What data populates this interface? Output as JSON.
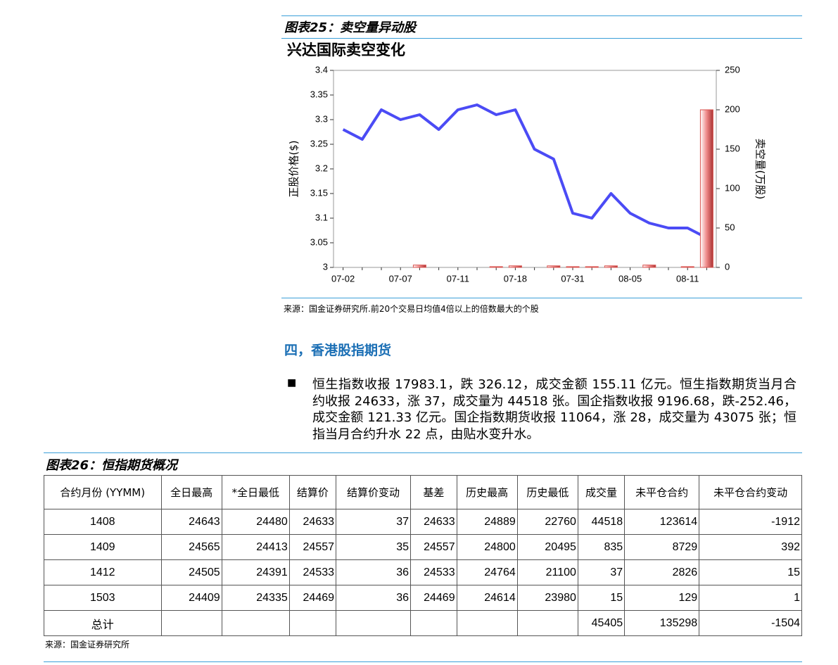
{
  "figure25": {
    "caption": "图表25：卖空量异动股",
    "source": "来源：国金证券研究所.前20个交易日均值4倍以上的倍数最大的个股"
  },
  "chart_data": {
    "type": "bar-line",
    "title": "兴达国际卖空变化",
    "categories": [
      "07-02",
      null,
      null,
      "07-07",
      null,
      null,
      "07-11",
      null,
      null,
      "07-18",
      null,
      null,
      "07-31",
      null,
      null,
      "08-05",
      null,
      null,
      "08-11",
      null
    ],
    "series": [
      {
        "type": "line",
        "color": "#4b4bf5",
        "values": [
          3.28,
          3.26,
          3.32,
          3.3,
          3.31,
          3.28,
          3.32,
          3.33,
          3.31,
          3.32,
          3.24,
          3.22,
          3.11,
          3.1,
          3.15,
          3.11,
          3.09,
          3.08,
          3.08,
          3.06
        ]
      },
      {
        "type": "bar",
        "axis": "y2",
        "color": "#d9534f",
        "values": [
          0,
          0,
          0,
          0,
          3,
          0,
          0,
          0,
          1,
          2,
          0,
          2,
          1,
          1,
          2,
          0,
          3,
          0,
          1,
          200
        ]
      }
    ],
    "ylabel": "正股价格($)",
    "y2label": "卖空量(万股)",
    "ylim": [
      3,
      3.4
    ],
    "yticks": [
      {
        "value": 3,
        "label": "3"
      },
      3.05,
      {
        "value": 3.1,
        "label": "3.1"
      },
      3.15,
      {
        "value": 3.2,
        "label": "3.2"
      },
      3.25,
      {
        "value": 3.3,
        "label": "3.3"
      },
      3.35,
      {
        "value": 3.4,
        "label": "3.4"
      }
    ],
    "y2lim": [
      0,
      250
    ],
    "y2ticks": [
      0,
      50,
      100,
      150,
      200,
      250
    ]
  },
  "section": {
    "heading": "四，香港股指期货",
    "paragraph": "恒生指数收报 17983.1，跌 326.12，成交金额 155.11 亿元。恒生指数期货当月合约收报 24633，涨 37，成交量为 44518 张。国企指数收报 9196.68，跌-252.46，成交金额 121.33 亿元。国企指数期货收报 11064，涨 28，成交量为 43075 张；恒指当月合约升水 22 点，由贴水变升水。"
  },
  "table": {
    "caption": "图表26：恒指期货概况",
    "header": [
      "合约月份 (YYMM)",
      "全日最高",
      "*全日最低",
      "结算价",
      "结算价变动",
      "基差",
      "历史最高",
      "历史最低",
      "成交量",
      "未平仓合约",
      "未平仓合约变动"
    ],
    "rows": [
      [
        1408,
        24643,
        24480,
        24633,
        37,
        24633,
        24889,
        22760,
        44518,
        123614,
        -1912
      ],
      [
        1409,
        24565,
        24413,
        24557,
        35,
        24557,
        24800,
        20495,
        835,
        8729,
        392
      ],
      [
        1412,
        24505,
        24391,
        24533,
        36,
        24533,
        24764,
        21100,
        37,
        2826,
        15
      ],
      [
        1503,
        24409,
        24335,
        24469,
        36,
        24469,
        24614,
        23980,
        15,
        129,
        1
      ],
      [
        "总计",
        null,
        null,
        null,
        null,
        null,
        null,
        null,
        45405,
        135298,
        -1504
      ]
    ],
    "source": "来源：国金证券研究所"
  }
}
